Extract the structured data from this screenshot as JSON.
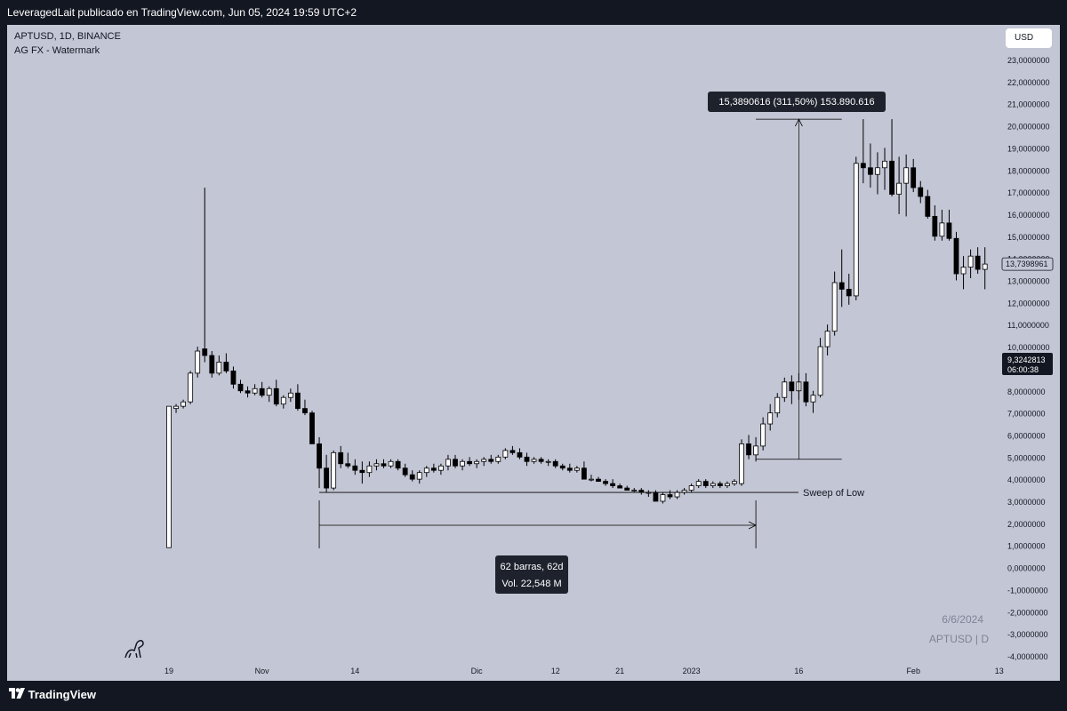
{
  "header": {
    "publisher_text": "LeveragedLait publicado en TradingView.com, Jun 05, 2024 19:59 UTC+2"
  },
  "footer": {
    "brand": "TradingView"
  },
  "chart_data": {
    "type": "candlestick",
    "symbol_line": "APTUSD, 1D, BINANCE",
    "indicator_line": "AG FX - Watermark",
    "currency_button": "USD",
    "watermark": {
      "date": "6/6/2024",
      "symbol": "APTUSD | D"
    },
    "y_axis": {
      "range": [
        -4,
        23.5
      ],
      "tick_labels": [
        "23,0000000",
        "22,0000000",
        "21,0000000",
        "20,0000000",
        "19,0000000",
        "18,0000000",
        "17,0000000",
        "16,0000000",
        "15,0000000",
        "14,0000000",
        "13,0000000",
        "12,0000000",
        "11,0000000",
        "10,0000000",
        "9,0000000",
        "8,0000000",
        "7,0000000",
        "6,0000000",
        "5,0000000",
        "4,0000000",
        "3,0000000",
        "2,0000000",
        "1,0000000",
        "0,0000000",
        "-1,0000000",
        "-2,0000000",
        "-3,0000000",
        "-4,0000000"
      ]
    },
    "price_tags": [
      {
        "label": "13,7398961",
        "value": 13.74,
        "style": "outline"
      },
      {
        "label": "9,3242813",
        "sublabel": "06:00:38",
        "value": 9.32,
        "style": "dark"
      }
    ],
    "x_axis": {
      "tick_labels": [
        {
          "label": "19",
          "bar": 0
        },
        {
          "label": "Nov",
          "bar": 13
        },
        {
          "label": "14",
          "bar": 26
        },
        {
          "label": "Dic",
          "bar": 43
        },
        {
          "label": "12",
          "bar": 54
        },
        {
          "label": "21",
          "bar": 63
        },
        {
          "label": "2023",
          "bar": 73
        },
        {
          "label": "16",
          "bar": 88
        },
        {
          "label": "Feb",
          "bar": 104
        },
        {
          "label": "13",
          "bar": 116
        }
      ]
    },
    "candles": [
      [
        0.9,
        7.3,
        0.9,
        7.3
      ],
      [
        7.2,
        7.4,
        7.0,
        7.3
      ],
      [
        7.3,
        7.6,
        7.2,
        7.5
      ],
      [
        7.5,
        8.9,
        7.4,
        8.8
      ],
      [
        8.8,
        10.0,
        8.6,
        9.8
      ],
      [
        9.9,
        17.2,
        9.3,
        9.6
      ],
      [
        9.6,
        9.8,
        8.6,
        8.8
      ],
      [
        8.8,
        9.6,
        8.7,
        9.3
      ],
      [
        9.3,
        9.7,
        8.8,
        8.9
      ],
      [
        8.9,
        9.1,
        8.1,
        8.3
      ],
      [
        8.3,
        8.5,
        7.9,
        8.0
      ],
      [
        8.0,
        8.2,
        7.7,
        7.9
      ],
      [
        7.9,
        8.3,
        7.8,
        8.1
      ],
      [
        8.1,
        8.4,
        7.7,
        7.8
      ],
      [
        7.8,
        8.2,
        7.5,
        8.1
      ],
      [
        8.1,
        8.5,
        7.3,
        7.4
      ],
      [
        7.4,
        7.8,
        7.2,
        7.7
      ],
      [
        7.7,
        8.1,
        7.5,
        7.9
      ],
      [
        7.9,
        8.3,
        7.1,
        7.2
      ],
      [
        7.2,
        7.6,
        6.9,
        7.0
      ],
      [
        7.0,
        7.1,
        5.6,
        5.6
      ],
      [
        5.6,
        5.9,
        3.6,
        4.5
      ],
      [
        4.5,
        5.1,
        3.4,
        3.6
      ],
      [
        3.6,
        5.3,
        3.5,
        5.2
      ],
      [
        5.2,
        5.5,
        4.5,
        4.7
      ],
      [
        4.7,
        5.2,
        4.5,
        4.6
      ],
      [
        4.6,
        4.9,
        4.2,
        4.4
      ],
      [
        4.4,
        4.8,
        3.8,
        4.3
      ],
      [
        4.3,
        4.8,
        4.1,
        4.6
      ],
      [
        4.6,
        4.9,
        4.4,
        4.7
      ],
      [
        4.7,
        4.9,
        4.5,
        4.6
      ],
      [
        4.6,
        4.9,
        4.5,
        4.8
      ],
      [
        4.8,
        4.9,
        4.4,
        4.5
      ],
      [
        4.5,
        4.7,
        4.1,
        4.2
      ],
      [
        4.2,
        4.4,
        3.9,
        4.0
      ],
      [
        4.0,
        4.4,
        3.8,
        4.3
      ],
      [
        4.3,
        4.6,
        4.1,
        4.5
      ],
      [
        4.5,
        4.7,
        4.3,
        4.4
      ],
      [
        4.4,
        4.7,
        4.2,
        4.6
      ],
      [
        4.6,
        5.1,
        4.4,
        4.9
      ],
      [
        4.9,
        5.1,
        4.5,
        4.6
      ],
      [
        4.6,
        4.9,
        4.4,
        4.8
      ],
      [
        4.8,
        5.0,
        4.6,
        4.7
      ],
      [
        4.7,
        4.9,
        4.5,
        4.8
      ],
      [
        4.8,
        5.0,
        4.6,
        4.9
      ],
      [
        4.9,
        5.1,
        4.7,
        4.8
      ],
      [
        4.8,
        5.1,
        4.7,
        5.0
      ],
      [
        5.0,
        5.4,
        4.9,
        5.3
      ],
      [
        5.3,
        5.5,
        5.1,
        5.2
      ],
      [
        5.2,
        5.4,
        4.9,
        5.0
      ],
      [
        5.0,
        5.2,
        4.6,
        4.8
      ],
      [
        4.8,
        5.0,
        4.7,
        4.9
      ],
      [
        4.9,
        5.0,
        4.7,
        4.8
      ],
      [
        4.8,
        4.9,
        4.6,
        4.8
      ],
      [
        4.8,
        4.9,
        4.5,
        4.6
      ],
      [
        4.6,
        4.7,
        4.4,
        4.5
      ],
      [
        4.5,
        4.7,
        4.3,
        4.4
      ],
      [
        4.4,
        4.6,
        4.3,
        4.5
      ],
      [
        4.5,
        4.8,
        4.0,
        4.0
      ],
      [
        4.0,
        4.2,
        3.9,
        4.0
      ],
      [
        4.0,
        4.1,
        3.9,
        3.9
      ],
      [
        3.9,
        4.0,
        3.7,
        3.8
      ],
      [
        3.8,
        4.0,
        3.6,
        3.7
      ],
      [
        3.7,
        3.8,
        3.6,
        3.6
      ],
      [
        3.6,
        3.7,
        3.5,
        3.5
      ],
      [
        3.5,
        3.6,
        3.4,
        3.5
      ],
      [
        3.5,
        3.6,
        3.3,
        3.4
      ],
      [
        3.4,
        3.5,
        3.2,
        3.4
      ],
      [
        3.4,
        3.5,
        3.0,
        3.0
      ],
      [
        3.0,
        3.4,
        2.9,
        3.3
      ],
      [
        3.3,
        3.5,
        3.1,
        3.2
      ],
      [
        3.2,
        3.5,
        3.1,
        3.4
      ],
      [
        3.4,
        3.6,
        3.3,
        3.5
      ],
      [
        3.5,
        3.8,
        3.4,
        3.7
      ],
      [
        3.7,
        4.0,
        3.6,
        3.9
      ],
      [
        3.9,
        4.0,
        3.6,
        3.7
      ],
      [
        3.7,
        3.9,
        3.6,
        3.8
      ],
      [
        3.8,
        3.9,
        3.6,
        3.7
      ],
      [
        3.7,
        3.9,
        3.6,
        3.8
      ],
      [
        3.8,
        4.0,
        3.7,
        3.9
      ],
      [
        3.8,
        5.8,
        3.7,
        5.6
      ],
      [
        5.6,
        6.0,
        4.9,
        5.1
      ],
      [
        5.1,
        5.9,
        4.8,
        5.5
      ],
      [
        5.5,
        6.8,
        5.3,
        6.5
      ],
      [
        6.5,
        7.4,
        6.2,
        7.0
      ],
      [
        7.0,
        7.9,
        6.8,
        7.7
      ],
      [
        7.7,
        8.6,
        7.5,
        8.4
      ],
      [
        8.4,
        8.7,
        7.4,
        8.0
      ],
      [
        8.0,
        8.8,
        7.6,
        8.4
      ],
      [
        8.4,
        8.8,
        7.3,
        7.5
      ],
      [
        7.5,
        8.0,
        7.0,
        7.8
      ],
      [
        7.8,
        10.4,
        7.7,
        10.0
      ],
      [
        10.0,
        11.0,
        9.6,
        10.7
      ],
      [
        10.7,
        13.4,
        10.5,
        12.9
      ],
      [
        12.9,
        14.4,
        11.8,
        12.6
      ],
      [
        12.6,
        13.3,
        11.9,
        12.3
      ],
      [
        12.3,
        18.6,
        12.1,
        18.3
      ],
      [
        18.3,
        20.3,
        17.4,
        18.1
      ],
      [
        18.1,
        19.2,
        17.2,
        17.8
      ],
      [
        17.8,
        18.8,
        16.9,
        18.1
      ],
      [
        18.1,
        19.0,
        17.1,
        18.4
      ],
      [
        18.4,
        20.3,
        16.8,
        16.9
      ],
      [
        16.9,
        18.6,
        16.0,
        17.4
      ],
      [
        17.4,
        18.7,
        15.9,
        18.1
      ],
      [
        18.1,
        18.5,
        17.0,
        17.2
      ],
      [
        17.2,
        17.5,
        16.5,
        16.8
      ],
      [
        16.8,
        17.1,
        15.8,
        15.9
      ],
      [
        15.9,
        16.4,
        14.8,
        15.0
      ],
      [
        15.0,
        16.2,
        14.8,
        15.6
      ],
      [
        15.6,
        16.2,
        14.8,
        14.9
      ],
      [
        14.9,
        15.2,
        13.0,
        13.3
      ],
      [
        13.3,
        14.1,
        12.6,
        13.6
      ],
      [
        13.6,
        14.4,
        13.1,
        14.1
      ],
      [
        14.1,
        14.5,
        13.3,
        13.5
      ],
      [
        13.5,
        14.5,
        12.6,
        13.74
      ]
    ],
    "annotations": {
      "measure_label": "15,3890616 (311,50%) 153.890.616",
      "range_label_1": "62 barras, 62d",
      "range_label_2": "Vol. 22,548 M",
      "sweep_label": "Sweep of Low"
    },
    "colors": {
      "up": "#ffffff",
      "down": "#000000",
      "background": "#c3c6d4",
      "frame": "#131722"
    }
  }
}
